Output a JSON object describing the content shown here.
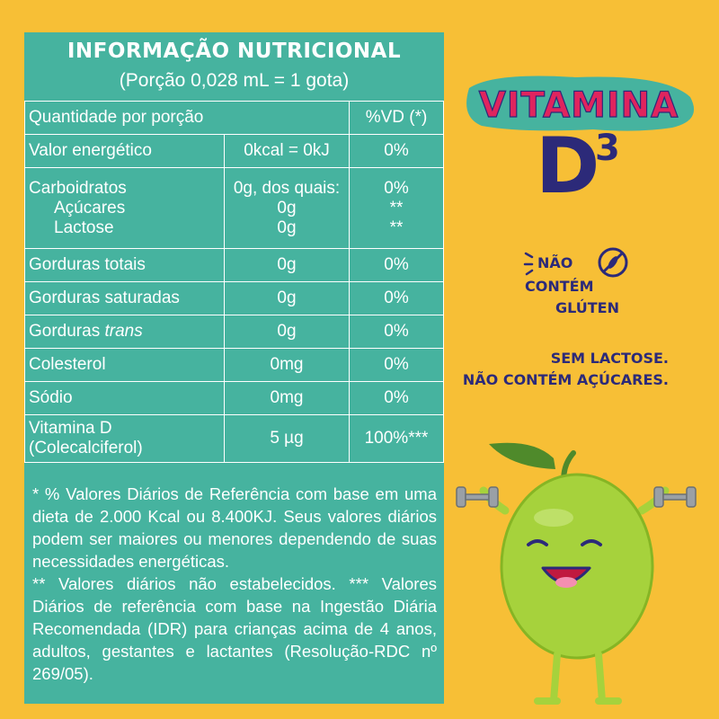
{
  "panel": {
    "title": "INFORMAÇÃO NUTRICIONAL",
    "subtitle": "(Porção 0,028 mL = 1 gota)",
    "header": {
      "qty": "Quantidade por porção",
      "vd": "%VD (*)"
    },
    "rows": [
      {
        "name": "Valor energético",
        "amount": "0kcal = 0kJ",
        "vd": "0%"
      },
      {
        "name": "Carboidratos",
        "amount": "0g, dos quais:",
        "vd": "0%",
        "sub": [
          {
            "name": "Açúcares",
            "amount": "0g",
            "vd": "**"
          },
          {
            "name": "Lactose",
            "amount": "0g",
            "vd": "**"
          }
        ]
      },
      {
        "name": "Gorduras totais",
        "amount": "0g",
        "vd": "0%"
      },
      {
        "name": "Gorduras saturadas",
        "amount": "0g",
        "vd": "0%"
      },
      {
        "name": "Gorduras",
        "name_italic": "trans",
        "amount": "0g",
        "vd": "0%"
      },
      {
        "name": "Colesterol",
        "amount": "0mg",
        "vd": "0%"
      },
      {
        "name": "Sódio",
        "amount": "0mg",
        "vd": "0%"
      },
      {
        "name": "Vitamina D",
        "name2": "(Colecalciferol)",
        "amount": "5 µg",
        "vd": "100%***"
      }
    ],
    "footnote_1": "* % Valores Diários de Referência com base em uma dieta de 2.000 Kcal ou 8.400KJ. Seus valores diários podem ser maiores ou menores dependendo de suas necessidades energéticas.",
    "footnote_2": "** Valores diários não estabelecidos. *** Valores Diários de referência com base na Ingestão Diária Recomendada (IDR) para crianças acima de 4 anos, adultos, gestantes e lactantes (Resolução-RDC nº 269/05)."
  },
  "brand": {
    "word": "VITAMINA",
    "letter": "D",
    "superscript": "3"
  },
  "gluten_badge": {
    "line1": "NÃO",
    "line2": "CONTÉM",
    "line3": "GLÚTEN"
  },
  "free_from": {
    "line1": "SEM LACTOSE.",
    "line2": "NÃO CONTÉM AÇÚCARES."
  },
  "colors": {
    "teal": "#46b39f",
    "yellow": "#f7bf36",
    "navy": "#2c2a79",
    "magenta": "#e0245e",
    "lime": "#a6d23c"
  }
}
